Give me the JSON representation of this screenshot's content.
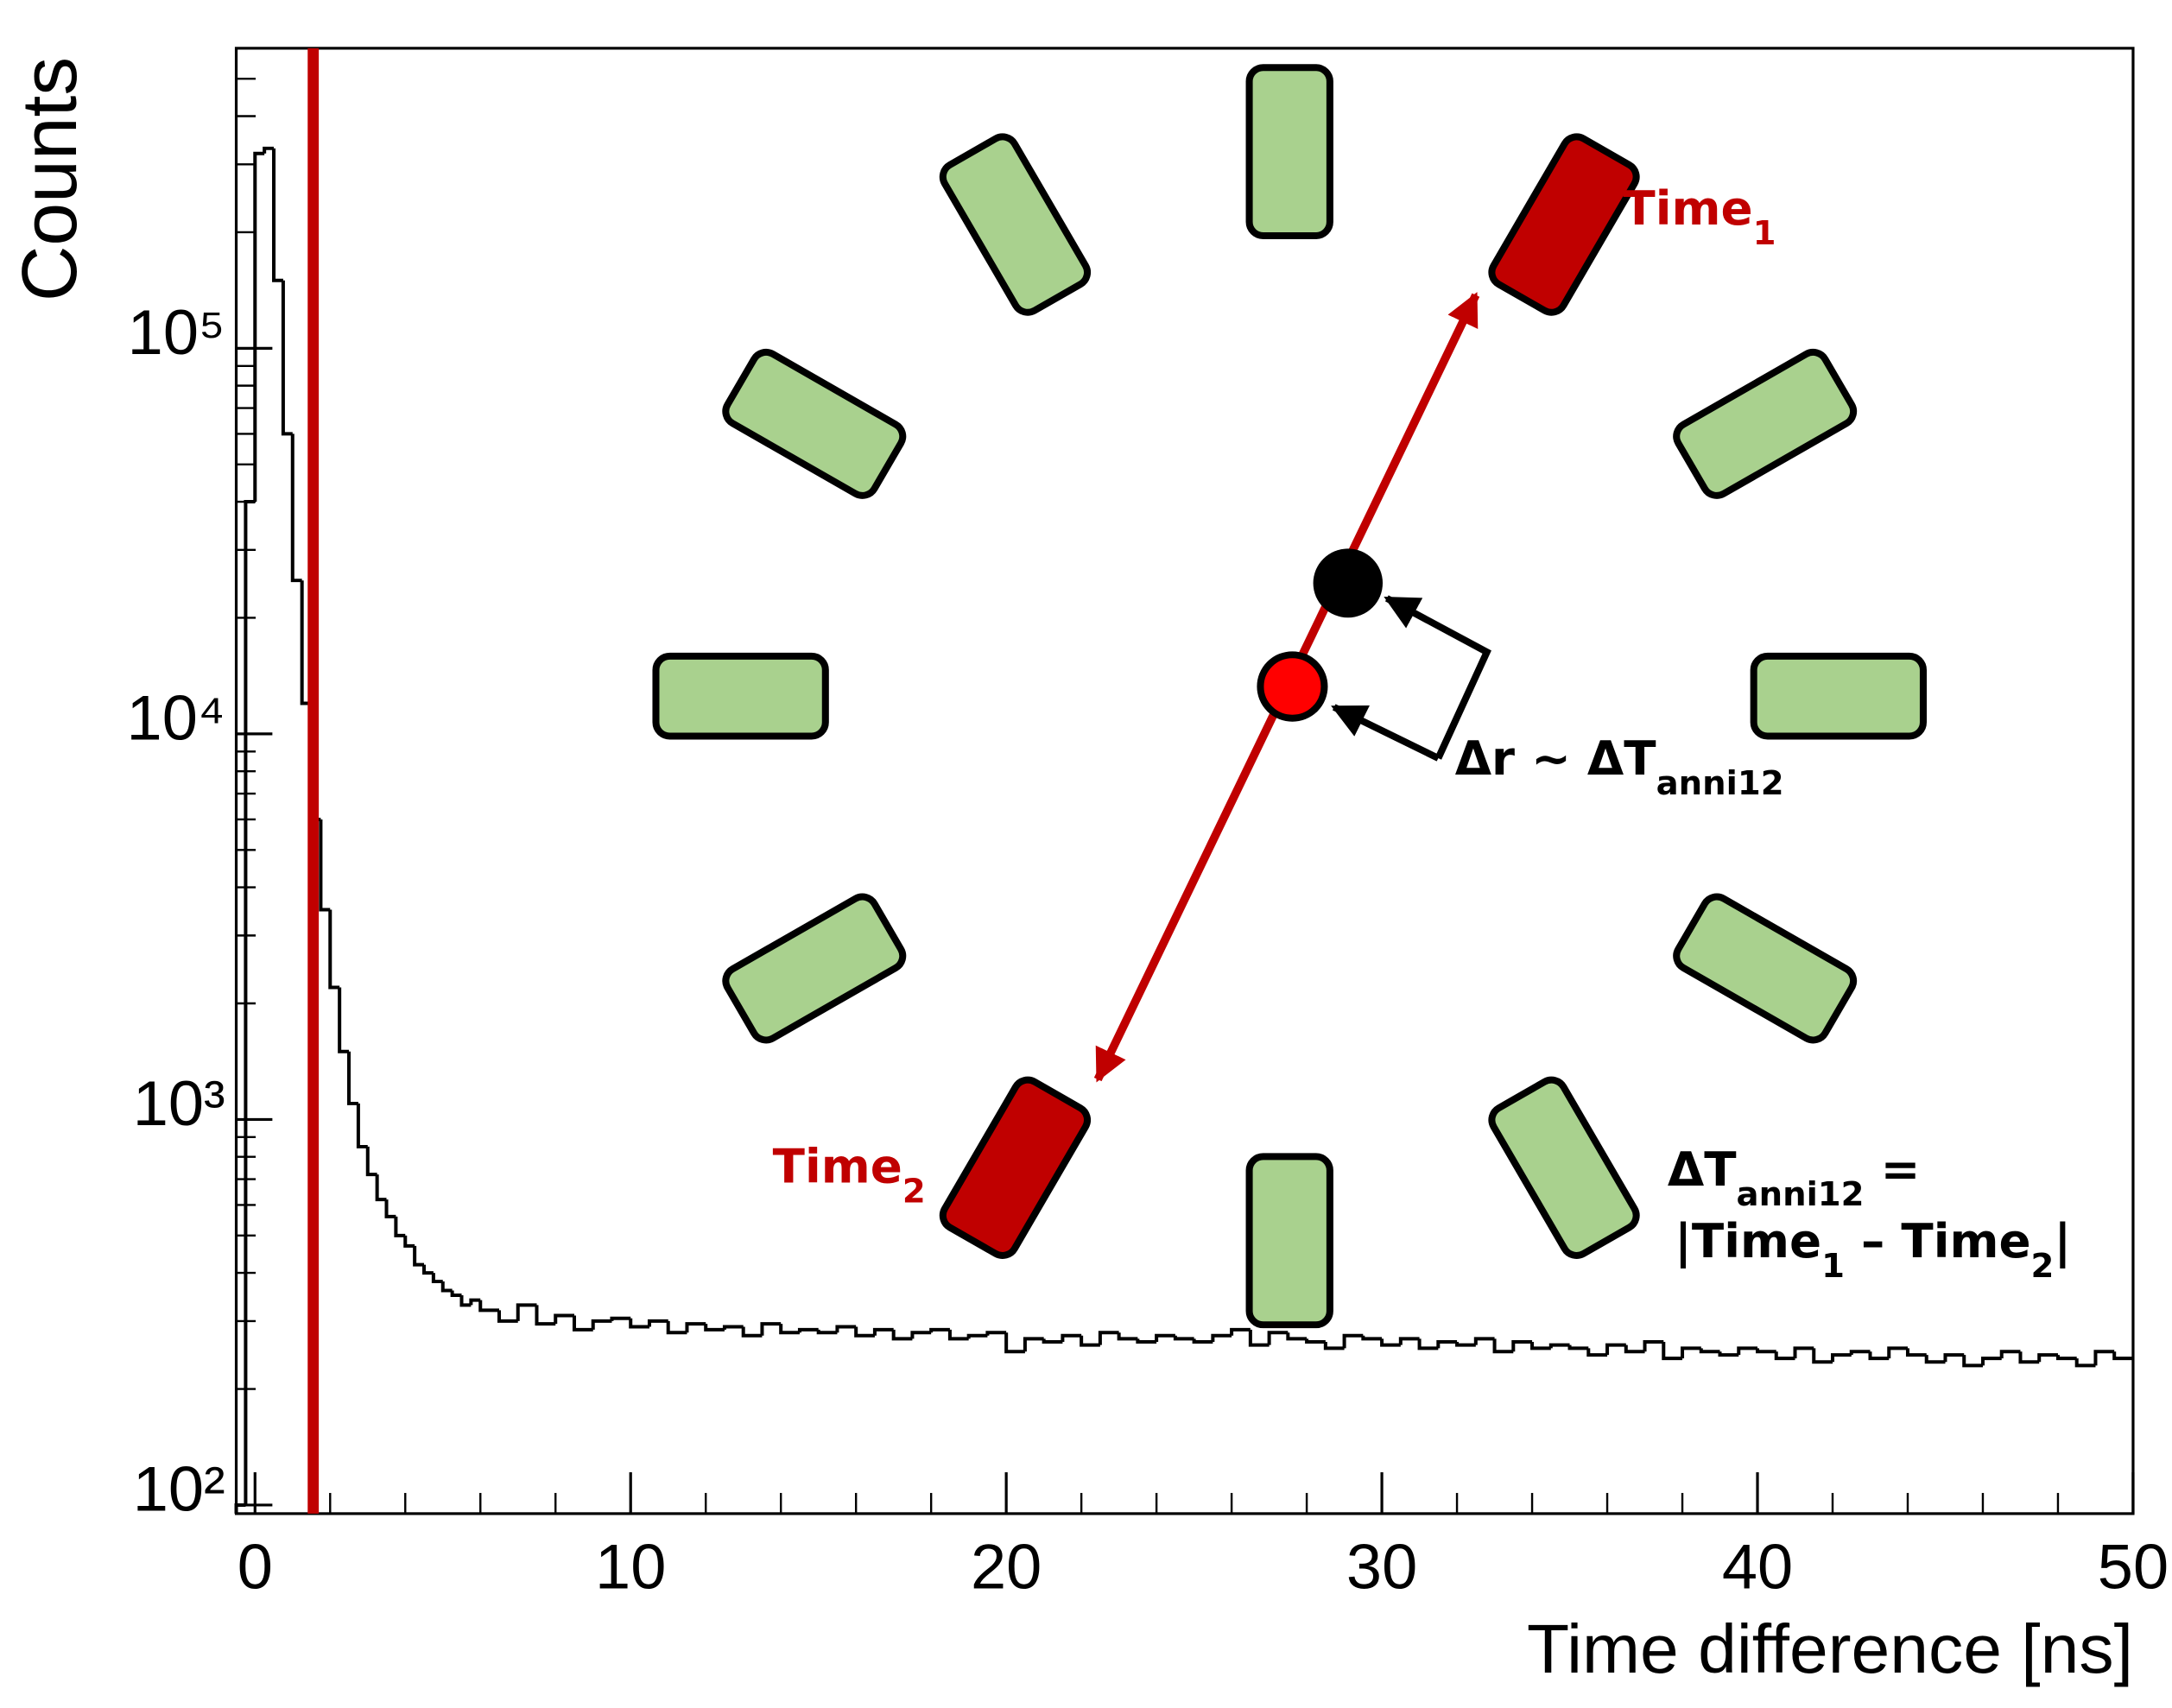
{
  "chart_data": {
    "type": "histogram",
    "xlabel": "Time difference [ns]",
    "ylabel": "Counts",
    "log_y": true,
    "color": "#000000",
    "bins": [
      -0.5,
      -0.25,
      0,
      0.25,
      0.5,
      0.75,
      1,
      1.25,
      1.5,
      1.75,
      2,
      2.25,
      2.5,
      2.75,
      3,
      3.25,
      3.5,
      3.75,
      4,
      4.25,
      4.5,
      4.75,
      5,
      5.25,
      5.5,
      5.75,
      6,
      6.5,
      7,
      7.5,
      8,
      8.5,
      9,
      9.5,
      10,
      10.5,
      11,
      11.5,
      12,
      12.5,
      13,
      13.5,
      14,
      14.5,
      15,
      15.5,
      16,
      16.5,
      17,
      17.5,
      18,
      18.5,
      19,
      19.5,
      20,
      20.5,
      21,
      21.5,
      22,
      22.5,
      23,
      23.5,
      24,
      24.5,
      25,
      25.5,
      26,
      26.5,
      27,
      27.5,
      28,
      28.5,
      29,
      29.5,
      30,
      30.5,
      31,
      31.5,
      32,
      32.5,
      33,
      33.5,
      34,
      34.5,
      35,
      35.5,
      36,
      36.5,
      37,
      37.5,
      38,
      38.5,
      39,
      39.5,
      40,
      40.5,
      41,
      41.5,
      42,
      42.5,
      43,
      43.5,
      44,
      44.5,
      45,
      45.5,
      46,
      46.5,
      47,
      47.5,
      48,
      48.5,
      49,
      49.5,
      50
    ],
    "counts": [
      100,
      40000,
      320000,
      330000,
      150000,
      60000,
      25000,
      12000,
      6000,
      3500,
      2200,
      1500,
      1100,
      850,
      720,
      620,
      560,
      500,
      470,
      420,
      400,
      380,
      360,
      350,
      330,
      340,
      320,
      300,
      330,
      295,
      310,
      285,
      300,
      305,
      290,
      300,
      280,
      295,
      285,
      290,
      275,
      295,
      280,
      285,
      280,
      290,
      275,
      285,
      270,
      280,
      285,
      270,
      275,
      280,
      250,
      270,
      265,
      275,
      260,
      280,
      270,
      265,
      275,
      270,
      265,
      275,
      285,
      260,
      280,
      270,
      265,
      255,
      275,
      270,
      260,
      270,
      255,
      265,
      260,
      270,
      250,
      265,
      255,
      260,
      255,
      245,
      260,
      250,
      265,
      240,
      255,
      250,
      245,
      255,
      250,
      240,
      255,
      235,
      245,
      250,
      240,
      255,
      245,
      235,
      245,
      230,
      240,
      250,
      235,
      245,
      240,
      230,
      250,
      240
    ],
    "xlim": [
      -0.5,
      50
    ],
    "ylim": [
      95,
      600000
    ],
    "xticks": [
      0,
      10,
      20,
      30,
      40,
      50
    ],
    "xminorticks": [
      2,
      4,
      6,
      8,
      12,
      14,
      16,
      18,
      22,
      24,
      26,
      28,
      32,
      34,
      36,
      38,
      42,
      44,
      46,
      48
    ],
    "yticks": [
      {
        "value": 100,
        "label": "10²"
      },
      {
        "value": 1000,
        "label": "10³"
      },
      {
        "value": 10000,
        "label": "10⁴"
      },
      {
        "value": 100000,
        "label": "10⁵"
      }
    ],
    "yminorticks": [
      200,
      300,
      400,
      500,
      600,
      700,
      800,
      900,
      2000,
      3000,
      4000,
      5000,
      6000,
      7000,
      8000,
      9000,
      20000,
      30000,
      40000,
      50000,
      60000,
      70000,
      80000,
      90000,
      200000,
      300000,
      400000,
      500000
    ],
    "vertical_line": {
      "x": 1.55,
      "color": "#c00000"
    }
  },
  "diagram": {
    "annotations": [
      {
        "color": "#c00000",
        "parts": [
          {
            "text": "Time"
          },
          {
            "sub": "1"
          }
        ]
      },
      {
        "color": "#c00000",
        "parts": [
          {
            "text": "Time"
          },
          {
            "sub": "2"
          }
        ]
      },
      {
        "color": "#000000",
        "parts": [
          {
            "text": "Δr ~ ΔT"
          },
          {
            "sub": "anni12"
          }
        ]
      },
      {
        "color": "#000000",
        "parts": [
          {
            "text": "ΔT"
          },
          {
            "sub": "anni12"
          },
          {
            "text": " ="
          }
        ]
      },
      {
        "color": "#000000",
        "parts": [
          {
            "text": "|Time"
          },
          {
            "sub": "1"
          },
          {
            "text": " – Time"
          },
          {
            "sub": "2"
          },
          {
            "text": "|"
          }
        ]
      }
    ]
  }
}
